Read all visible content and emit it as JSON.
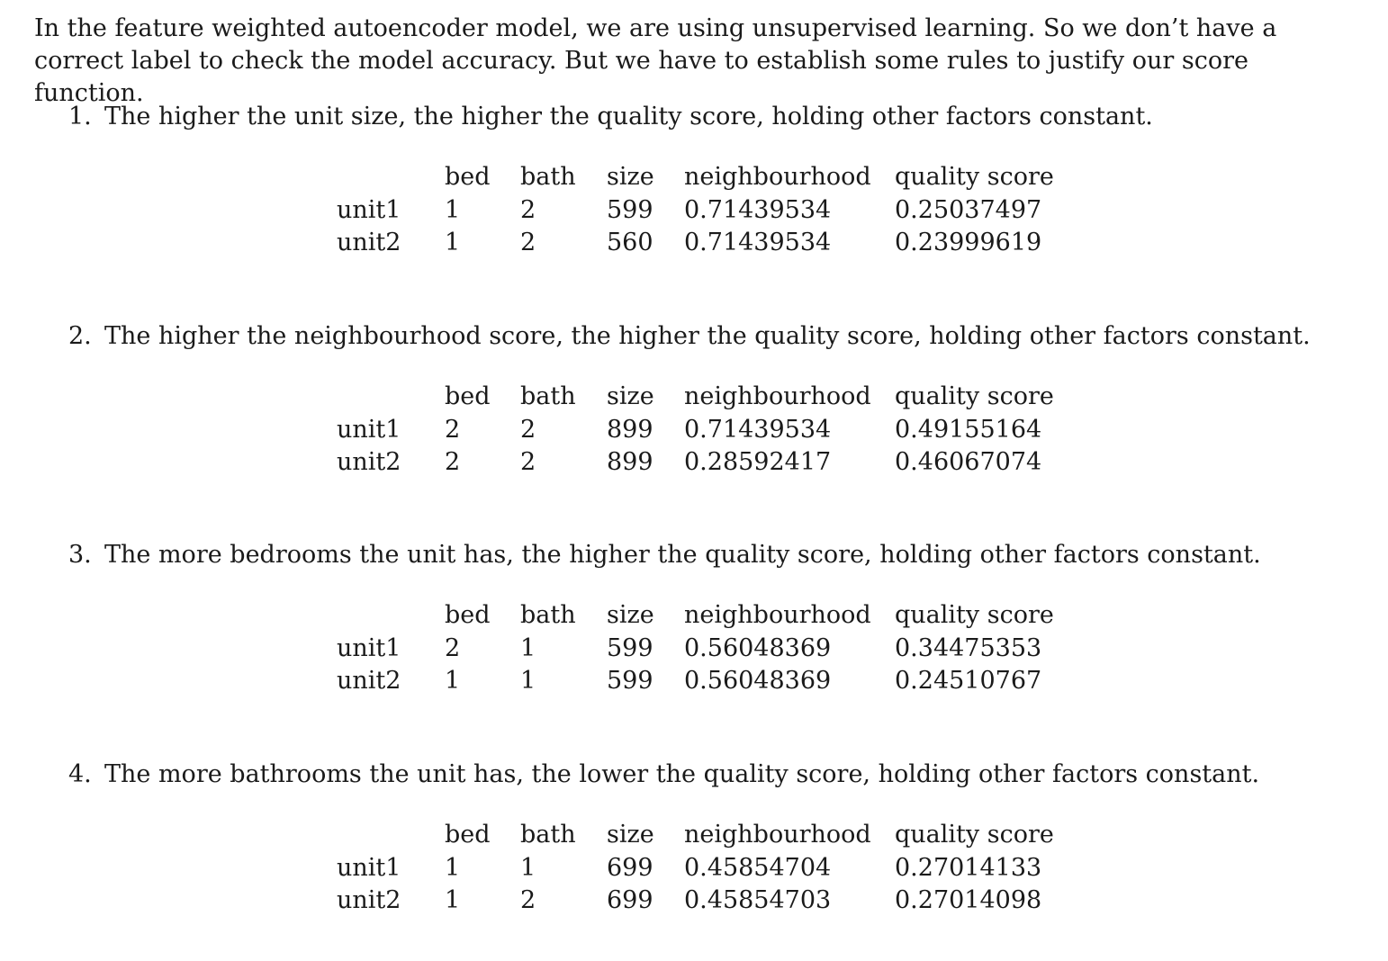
{
  "intro": "In the feature weighted autoencoder model, we are using unsupervised learning. So we don’t have a correct label to check the model accuracy. But we have to establish some rules to justify our score function.",
  "columns": [
    "",
    "bed",
    "bath",
    "size",
    "neighbourhood",
    "quality score"
  ],
  "rules": [
    {
      "number": "1.",
      "text": "The higher the unit size, the higher the quality score, holding other factors constant.",
      "rows": [
        [
          "unit1",
          "1",
          "2",
          "599",
          "0.71439534",
          "0.25037497"
        ],
        [
          "unit2",
          "1",
          "2",
          "560",
          "0.71439534",
          "0.23999619"
        ]
      ]
    },
    {
      "number": "2.",
      "text": "The higher the neighbourhood score, the higher the quality score, holding other factors constant.",
      "rows": [
        [
          "unit1",
          "2",
          "2",
          "899",
          "0.71439534",
          "0.49155164"
        ],
        [
          "unit2",
          "2",
          "2",
          "899",
          "0.28592417",
          "0.46067074"
        ]
      ]
    },
    {
      "number": "3.",
      "text": "The more bedrooms the unit has, the higher the quality score, holding other factors constant.",
      "rows": [
        [
          "unit1",
          "2",
          "1",
          "599",
          "0.56048369",
          "0.34475353"
        ],
        [
          "unit2",
          "1",
          "1",
          "599",
          "0.56048369",
          "0.24510767"
        ]
      ]
    },
    {
      "number": "4.",
      "text": "The more bathrooms the unit has, the lower the quality score, holding other factors constant.",
      "rows": [
        [
          "unit1",
          "1",
          "1",
          "699",
          "0.45854704",
          "0.27014133"
        ],
        [
          "unit2",
          "1",
          "2",
          "699",
          "0.45854703",
          "0.27014098"
        ]
      ]
    }
  ]
}
